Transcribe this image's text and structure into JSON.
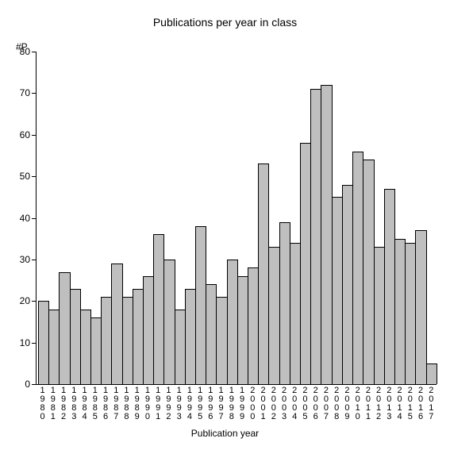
{
  "chart": {
    "type": "bar",
    "title": "Publications per year in class",
    "title_fontsize": 14,
    "y_unit_label": "#P",
    "x_axis_title": "Publication year",
    "label_fontsize": 12,
    "ylim": [
      0,
      80
    ],
    "ytick_step": 10,
    "yticks": [
      0,
      10,
      20,
      30,
      40,
      50,
      60,
      70,
      80
    ],
    "categories": [
      "1980",
      "1981",
      "1982",
      "1983",
      "1984",
      "1985",
      "1986",
      "1987",
      "1988",
      "1989",
      "1990",
      "1991",
      "1992",
      "1993",
      "1994",
      "1995",
      "1996",
      "1997",
      "1998",
      "1999",
      "2000",
      "2001",
      "2002",
      "2003",
      "2004",
      "2005",
      "2006",
      "2007",
      "2008",
      "2009",
      "2010",
      "2011",
      "2012",
      "2013",
      "2014",
      "2015",
      "2016",
      "2017"
    ],
    "values": [
      20,
      18,
      27,
      23,
      18,
      16,
      21,
      29,
      21,
      23,
      26,
      36,
      30,
      18,
      23,
      38,
      24,
      21,
      30,
      26,
      28,
      53,
      33,
      39,
      34,
      58,
      71,
      72,
      45,
      48,
      56,
      54,
      33,
      47,
      35,
      34,
      37,
      5
    ],
    "bar_color": "#bfbfbf",
    "bar_border_color": "#000000",
    "background_color": "#ffffff",
    "axis_color": "#000000",
    "bar_width": 1.0
  }
}
